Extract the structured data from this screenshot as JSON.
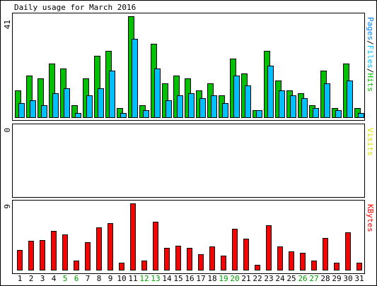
{
  "chart_data": {
    "type": "bar",
    "title": "Daily usage for March 2016",
    "categories": [
      "1",
      "2",
      "3",
      "4",
      "5",
      "6",
      "7",
      "8",
      "9",
      "10",
      "11",
      "12",
      "13",
      "14",
      "15",
      "16",
      "17",
      "18",
      "19",
      "20",
      "21",
      "22",
      "23",
      "24",
      "25",
      "26",
      "27",
      "28",
      "29",
      "30",
      "31"
    ],
    "weekend_days": [
      "5",
      "6",
      "12",
      "13",
      "19",
      "20",
      "26",
      "27"
    ],
    "panels": [
      {
        "name": "pages-files-hits",
        "ymax_label": "41",
        "ylim": [
          0,
          41
        ],
        "side_label": [
          "Pages",
          "/",
          "Files",
          "/",
          "Hits"
        ],
        "series": [
          {
            "name": "Hits",
            "color": "#00c000",
            "values": [
              11,
              17,
              16,
              22,
              20,
              5,
              16,
              25,
              27,
              4,
              41,
              5,
              30,
              14,
              17,
              16,
              11,
              14,
              9,
              24,
              18,
              3,
              27,
              15,
              11,
              10,
              5,
              19,
              4,
              22,
              4
            ]
          },
          {
            "name": "Files",
            "color": "#00c0ff",
            "values": [
              6,
              7,
              5,
              10,
              12,
              2,
              9,
              12,
              19,
              2,
              32,
              3,
              20,
              7,
              9,
              10,
              8,
              9,
              6,
              17,
              13,
              3,
              21,
              11,
              9,
              8,
              4,
              14,
              3,
              15,
              2
            ]
          }
        ]
      },
      {
        "name": "visits",
        "ymax_label": "0",
        "ylim": [
          0,
          1
        ],
        "side_label": [
          "Visits"
        ],
        "series": [
          {
            "name": "Visits",
            "color": "#e0e000",
            "values": [
              0,
              0,
              0,
              0,
              0,
              0,
              0,
              0,
              0,
              0,
              0,
              0,
              0,
              0,
              0,
              0,
              0,
              0,
              0,
              0,
              0,
              0,
              0,
              0,
              0,
              0,
              0,
              0,
              0,
              0,
              0
            ]
          }
        ]
      },
      {
        "name": "kbytes",
        "ymax_label": "9",
        "ylim": [
          0,
          9
        ],
        "side_label": [
          "KBytes"
        ],
        "series": [
          {
            "name": "KBytes",
            "color": "#ff0000",
            "values": [
              2.7,
              4,
              4.1,
              5.3,
              4.8,
              1.3,
              3.8,
              5.8,
              6.3,
              1,
              9,
              1.3,
              6.5,
              3,
              3.3,
              3,
              2.2,
              3.2,
              2,
              5.6,
              4.3,
              0.8,
              6.1,
              3.2,
              2.6,
              2.4,
              1.3,
              4.4,
              1,
              5.1,
              1
            ]
          }
        ]
      }
    ],
    "colors": {
      "background": "#ffffff",
      "axis": "#000000",
      "weekday_label": "#000000",
      "weekend_label": "#00a000",
      "slash": "#000000"
    }
  }
}
